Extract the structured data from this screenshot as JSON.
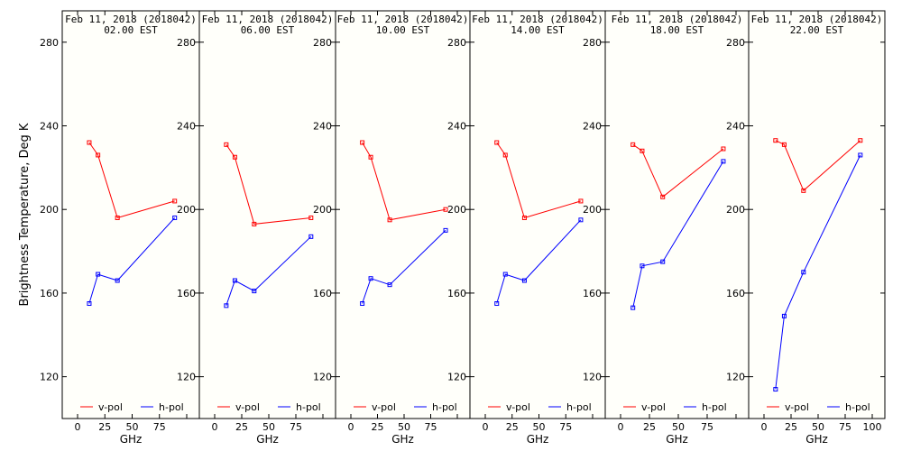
{
  "chart_data": {
    "type": "line",
    "ylabel": "Brightness Temperature, Deg K",
    "xlabel": "GHz",
    "xlim": [
      0,
      100
    ],
    "ylim": [
      100,
      295
    ],
    "x_ticks": [
      "0",
      "25",
      "50",
      "75",
      "100"
    ],
    "y_ticks": [
      120,
      160,
      200,
      240,
      280
    ],
    "legend": [
      "v-pol",
      "h-pol"
    ],
    "colors": {
      "v-pol": "#ff0000",
      "h-pol": "#0000ff",
      "axis": "#000000",
      "background": "#fffffa"
    },
    "panels": [
      {
        "title": "Feb 11, 2018 (2018042)",
        "subtitle": "02.00 EST",
        "series": [
          {
            "name": "v-pol",
            "x": [
              10.7,
              18.7,
              36.5,
              89.0
            ],
            "y": [
              232,
              226,
              196,
              204
            ]
          },
          {
            "name": "h-pol",
            "x": [
              10.7,
              18.7,
              36.5,
              89.0
            ],
            "y": [
              155,
              169,
              166,
              196
            ]
          }
        ]
      },
      {
        "title": "Feb 11, 2018 (2018042)",
        "subtitle": "06.00 EST",
        "series": [
          {
            "name": "v-pol",
            "x": [
              10.7,
              18.7,
              36.5,
              89.0
            ],
            "y": [
              231,
              225,
              193,
              196
            ]
          },
          {
            "name": "h-pol",
            "x": [
              10.7,
              18.7,
              36.5,
              89.0
            ],
            "y": [
              154,
              166,
              161,
              187
            ]
          }
        ]
      },
      {
        "title": "Feb 11, 2018 (2018042)",
        "subtitle": "10.00 EST",
        "series": [
          {
            "name": "v-pol",
            "x": [
              10.7,
              18.7,
              36.5,
              89.0
            ],
            "y": [
              232,
              225,
              195,
              200
            ]
          },
          {
            "name": "h-pol",
            "x": [
              10.7,
              18.7,
              36.5,
              89.0
            ],
            "y": [
              155,
              167,
              164,
              190
            ]
          }
        ]
      },
      {
        "title": "Feb 11, 2018 (2018042)",
        "subtitle": "14.00 EST",
        "series": [
          {
            "name": "v-pol",
            "x": [
              10.7,
              18.7,
              36.5,
              89.0
            ],
            "y": [
              232,
              226,
              196,
              204
            ]
          },
          {
            "name": "h-pol",
            "x": [
              10.7,
              18.7,
              36.5,
              89.0
            ],
            "y": [
              155,
              169,
              166,
              195
            ]
          }
        ]
      },
      {
        "title": "Feb 11, 2018 (2018042)",
        "subtitle": "18.00 EST",
        "series": [
          {
            "name": "v-pol",
            "x": [
              10.7,
              18.7,
              36.5,
              89.0
            ],
            "y": [
              231,
              228,
              206,
              229
            ]
          },
          {
            "name": "h-pol",
            "x": [
              10.7,
              18.7,
              36.5,
              89.0
            ],
            "y": [
              153,
              173,
              175,
              223
            ]
          }
        ]
      },
      {
        "title": "Feb 11, 2018 (2018042)",
        "subtitle": "22.00 EST",
        "series": [
          {
            "name": "v-pol",
            "x": [
              10.7,
              18.7,
              36.5,
              89.0
            ],
            "y": [
              233,
              231,
              209,
              233
            ]
          },
          {
            "name": "h-pol",
            "x": [
              10.7,
              18.7,
              36.5,
              89.0
            ],
            "y": [
              114,
              149,
              170,
              226
            ]
          }
        ]
      }
    ]
  }
}
